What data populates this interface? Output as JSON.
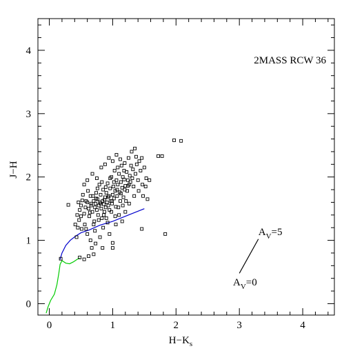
{
  "chart_data": {
    "type": "scatter",
    "title": "2MASS RCW 36",
    "xlabel": "H−K",
    "xlabel_subscript": "s",
    "ylabel": "J−H",
    "xlim": [
      -0.18,
      4.5
    ],
    "ylim": [
      -0.18,
      4.5
    ],
    "x_ticks": [
      0,
      1,
      2,
      3,
      4
    ],
    "y_ticks": [
      0,
      1,
      2,
      3,
      4
    ],
    "x_tick_labels": [
      "0",
      "1",
      "2",
      "3",
      "4"
    ],
    "y_tick_labels": [
      "0",
      "1",
      "2",
      "3",
      "4"
    ],
    "minor_tick_step": 0.2,
    "grid": false,
    "marker": "open-square",
    "colors": {
      "points": "#000000",
      "giant_locus": "#0000cc",
      "dwarf_locus": "#00cc00",
      "reddening": "#000000"
    },
    "points": [
      [
        0.18,
        0.71
      ],
      [
        0.55,
        0.7
      ],
      [
        0.62,
        0.75
      ],
      [
        0.7,
        0.78
      ],
      [
        0.48,
        0.73
      ],
      [
        0.3,
        1.56
      ],
      [
        0.43,
        1.05
      ],
      [
        0.45,
        1.2
      ],
      [
        0.47,
        1.32
      ],
      [
        0.48,
        1.48
      ],
      [
        0.5,
        1.55
      ],
      [
        0.52,
        1.63
      ],
      [
        0.55,
        1.42
      ],
      [
        0.56,
        1.25
      ],
      [
        0.58,
        1.18
      ],
      [
        0.6,
        1.6
      ],
      [
        0.62,
        1.5
      ],
      [
        0.63,
        1.38
      ],
      [
        0.65,
        1.7
      ],
      [
        0.66,
        1.55
      ],
      [
        0.68,
        1.45
      ],
      [
        0.7,
        1.62
      ],
      [
        0.71,
        1.3
      ],
      [
        0.72,
        1.52
      ],
      [
        0.73,
        1.58
      ],
      [
        0.74,
        1.75
      ],
      [
        0.75,
        1.48
      ],
      [
        0.76,
        1.65
      ],
      [
        0.77,
        1.4
      ],
      [
        0.78,
        1.55
      ],
      [
        0.79,
        1.88
      ],
      [
        0.8,
        1.6
      ],
      [
        0.81,
        1.72
      ],
      [
        0.82,
        1.5
      ],
      [
        0.83,
        1.35
      ],
      [
        0.84,
        1.62
      ],
      [
        0.85,
        1.8
      ],
      [
        0.86,
        1.57
      ],
      [
        0.87,
        1.45
      ],
      [
        0.88,
        1.68
      ],
      [
        0.89,
        1.52
      ],
      [
        0.9,
        1.75
      ],
      [
        0.91,
        1.6
      ],
      [
        0.92,
        1.9
      ],
      [
        0.93,
        1.55
      ],
      [
        0.94,
        1.7
      ],
      [
        0.95,
        1.48
      ],
      [
        0.96,
        1.82
      ],
      [
        0.97,
        1.62
      ],
      [
        0.98,
        2.0
      ],
      [
        0.99,
        1.58
      ],
      [
        1.0,
        1.72
      ],
      [
        1.01,
        1.85
      ],
      [
        1.02,
        1.66
      ],
      [
        1.03,
        2.1
      ],
      [
        1.04,
        1.78
      ],
      [
        1.05,
        1.53
      ],
      [
        1.06,
        1.95
      ],
      [
        1.07,
        1.7
      ],
      [
        1.08,
        1.88
      ],
      [
        1.1,
        2.05
      ],
      [
        1.11,
        1.76
      ],
      [
        1.12,
        1.62
      ],
      [
        1.13,
        1.92
      ],
      [
        1.14,
        2.18
      ],
      [
        1.15,
        1.83
      ],
      [
        1.16,
        2.0
      ],
      [
        1.17,
        1.68
      ],
      [
        1.18,
        1.96
      ],
      [
        1.19,
        2.22
      ],
      [
        1.2,
        1.86
      ],
      [
        1.22,
        2.08
      ],
      [
        1.23,
        1.78
      ],
      [
        1.24,
        1.95
      ],
      [
        1.25,
        2.3
      ],
      [
        1.26,
        1.88
      ],
      [
        1.27,
        2.02
      ],
      [
        1.28,
        1.92
      ],
      [
        1.3,
        2.4
      ],
      [
        1.31,
        1.98
      ],
      [
        1.32,
        2.12
      ],
      [
        1.33,
        1.85
      ],
      [
        1.35,
        2.45
      ],
      [
        1.36,
        2.05
      ],
      [
        1.38,
        2.2
      ],
      [
        1.4,
        1.95
      ],
      [
        1.42,
        2.25
      ],
      [
        1.44,
        2.1
      ],
      [
        1.46,
        2.3
      ],
      [
        1.48,
        1.7
      ],
      [
        1.5,
        2.15
      ],
      [
        1.52,
        1.85
      ],
      [
        1.55,
        1.65
      ],
      [
        1.58,
        1.95
      ],
      [
        1.46,
        1.18
      ],
      [
        1.72,
        2.33
      ],
      [
        1.78,
        2.33
      ],
      [
        1.83,
        1.1
      ],
      [
        1.97,
        2.58
      ],
      [
        2.08,
        2.57
      ],
      [
        0.6,
        1.1
      ],
      [
        0.65,
        1.0
      ],
      [
        0.7,
        1.25
      ],
      [
        0.72,
        1.15
      ],
      [
        0.8,
        1.05
      ],
      [
        0.85,
        1.2
      ],
      [
        0.9,
        1.35
      ],
      [
        0.95,
        1.1
      ],
      [
        1.0,
        0.96
      ],
      [
        1.05,
        1.25
      ],
      [
        1.1,
        1.4
      ],
      [
        1.15,
        1.3
      ],
      [
        1.2,
        1.45
      ],
      [
        0.55,
        1.88
      ],
      [
        0.6,
        1.95
      ],
      [
        0.68,
        2.05
      ],
      [
        0.75,
        1.98
      ],
      [
        0.82,
        2.15
      ],
      [
        0.88,
        2.2
      ],
      [
        0.94,
        2.3
      ],
      [
        1.0,
        2.25
      ],
      [
        1.06,
        2.35
      ],
      [
        1.12,
        2.28
      ],
      [
        0.5,
        1.38
      ],
      [
        0.57,
        1.52
      ],
      [
        0.64,
        1.44
      ],
      [
        0.78,
        1.32
      ],
      [
        0.86,
        1.4
      ],
      [
        0.92,
        1.28
      ],
      [
        0.98,
        1.45
      ],
      [
        1.04,
        1.38
      ],
      [
        1.09,
        1.52
      ],
      [
        1.16,
        1.55
      ],
      [
        1.21,
        1.62
      ],
      [
        1.26,
        1.58
      ],
      [
        1.34,
        1.7
      ],
      [
        1.41,
        1.78
      ],
      [
        1.47,
        1.88
      ],
      [
        1.53,
        1.98
      ],
      [
        0.76,
        1.82
      ],
      [
        0.83,
        1.92
      ],
      [
        0.89,
        1.84
      ],
      [
        0.96,
        1.98
      ],
      [
        1.02,
        1.92
      ],
      [
        1.08,
        2.15
      ],
      [
        1.18,
        2.1
      ],
      [
        1.29,
        2.18
      ],
      [
        1.37,
        2.32
      ],
      [
        0.46,
        1.6
      ],
      [
        0.53,
        1.72
      ],
      [
        0.61,
        1.78
      ],
      [
        0.69,
        1.7
      ],
      [
        0.58,
        1.62
      ],
      [
        0.66,
        1.58
      ],
      [
        0.74,
        1.66
      ],
      [
        0.81,
        1.58
      ],
      [
        0.87,
        1.64
      ],
      [
        0.93,
        1.68
      ],
      [
        0.99,
        1.62
      ],
      [
        1.07,
        1.8
      ],
      [
        1.13,
        1.74
      ],
      [
        1.19,
        1.8
      ],
      [
        1.24,
        1.86
      ],
      [
        0.41,
        1.25
      ],
      [
        0.44,
        1.4
      ],
      [
        0.51,
        1.18
      ],
      [
        0.67,
        0.88
      ],
      [
        0.73,
        0.95
      ],
      [
        0.84,
        0.88
      ],
      [
        1.0,
        0.88
      ]
    ],
    "giant_locus": [
      [
        0.17,
        0.7
      ],
      [
        0.2,
        0.8
      ],
      [
        0.26,
        0.92
      ],
      [
        0.33,
        1.0
      ],
      [
        0.42,
        1.07
      ],
      [
        0.5,
        1.12
      ],
      [
        0.62,
        1.16
      ],
      [
        0.8,
        1.24
      ],
      [
        1.0,
        1.3
      ],
      [
        1.25,
        1.4
      ],
      [
        1.5,
        1.5
      ]
    ],
    "dwarf_locus": [
      [
        -0.05,
        -0.15
      ],
      [
        -0.02,
        -0.05
      ],
      [
        0.02,
        0.05
      ],
      [
        0.08,
        0.15
      ],
      [
        0.12,
        0.3
      ],
      [
        0.15,
        0.48
      ],
      [
        0.17,
        0.62
      ],
      [
        0.2,
        0.68
      ],
      [
        0.26,
        0.64
      ],
      [
        0.32,
        0.63
      ],
      [
        0.38,
        0.66
      ],
      [
        0.44,
        0.7
      ],
      [
        0.48,
        0.72
      ]
    ],
    "reddening_vector": [
      [
        3.0,
        0.48
      ],
      [
        3.3,
        1.02
      ]
    ],
    "annotations": [
      {
        "main": "A",
        "sub": "V",
        "tail": "=5",
        "at": [
          3.3,
          1.08
        ]
      },
      {
        "main": "A",
        "sub": "V",
        "tail": "=0",
        "at": [
          2.9,
          0.29
        ]
      }
    ]
  }
}
